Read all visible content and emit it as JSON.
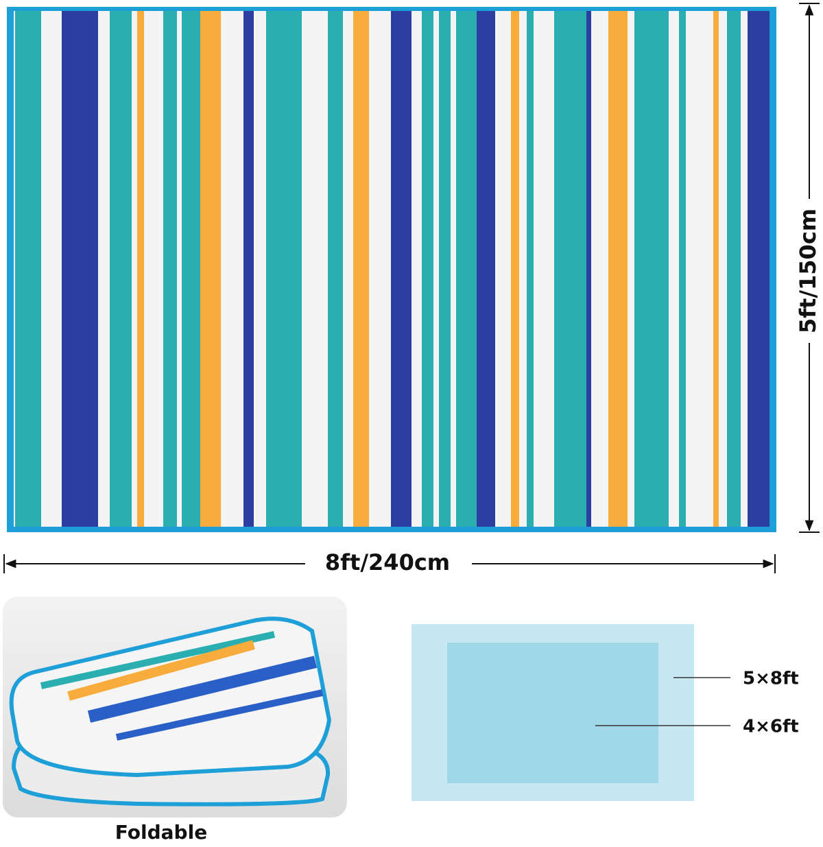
{
  "dimensions": {
    "height": "5ft/150cm",
    "width": "8ft/240cm"
  },
  "folded": {
    "caption": "Foldable"
  },
  "sizes": {
    "large": "5×8ft",
    "small": "4×6ft"
  }
}
